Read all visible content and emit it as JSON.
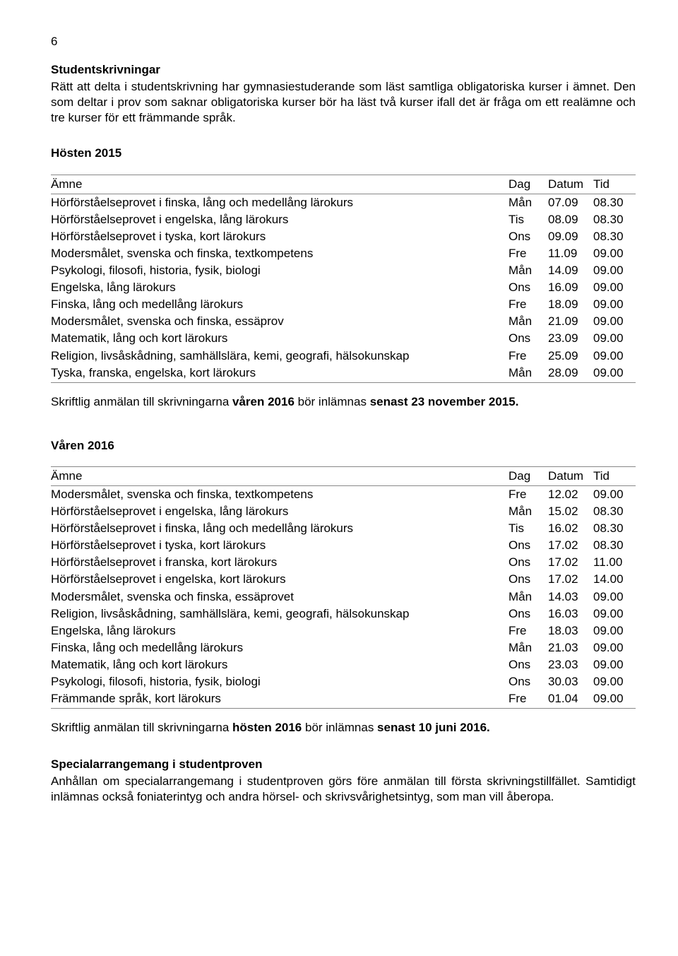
{
  "page_number": "6",
  "section1": {
    "heading": "Studentskrivningar",
    "body": "Rätt att delta i studentskrivning har gymnasiestuderande som läst samtliga obligatoriska kurser i ämnet. Den som deltar i prov som saknar obligatoriska kurser bör ha läst två kurser ifall det är fråga om ett realämne och tre kurser för ett främmande språk."
  },
  "hosten": {
    "heading": "Hösten 2015",
    "columns": {
      "subject": "Ämne",
      "day": "Dag",
      "date": "Datum",
      "time": "Tid"
    },
    "rows": [
      {
        "subject": "Hörförståelseprovet i finska, lång och medellång lärokurs",
        "day": "Mån",
        "date": "07.09",
        "time": "08.30"
      },
      {
        "subject": "Hörförståelseprovet i engelska, lång lärokurs",
        "day": "Tis",
        "date": "08.09",
        "time": "08.30"
      },
      {
        "subject": "Hörförståelseprovet i tyska, kort lärokurs",
        "day": "Ons",
        "date": "09.09",
        "time": "08.30"
      },
      {
        "subject": "Modersmålet, svenska och finska, textkompetens",
        "day": "Fre",
        "date": "11.09",
        "time": "09.00"
      },
      {
        "subject": "Psykologi, filosofi, historia, fysik, biologi",
        "day": "Mån",
        "date": "14.09",
        "time": "09.00"
      },
      {
        "subject": "Engelska, lång lärokurs",
        "day": "Ons",
        "date": "16.09",
        "time": "09.00"
      },
      {
        "subject": "Finska, lång och medellång lärokurs",
        "day": "Fre",
        "date": "18.09",
        "time": "09.00"
      },
      {
        "subject": "Modersmålet, svenska och finska, essäprov",
        "day": "Mån",
        "date": "21.09",
        "time": "09.00"
      },
      {
        "subject": "Matematik, lång och kort lärokurs",
        "day": "Ons",
        "date": "23.09",
        "time": "09.00"
      },
      {
        "subject": "Religion, livsåskådning, samhällslära, kemi, geografi, hälsokunskap",
        "day": "Fre",
        "date": "25.09",
        "time": "09.00"
      },
      {
        "subject": "Tyska, franska, engelska, kort lärokurs",
        "day": "Mån",
        "date": "28.09",
        "time": "09.00"
      }
    ],
    "note_pre": "Skriftlig anmälan till skrivningarna ",
    "note_b1": "våren 2016",
    "note_mid": " bör inlämnas ",
    "note_b2": "senast 23 november 2015."
  },
  "varen": {
    "heading": "Våren 2016",
    "columns": {
      "subject": "Ämne",
      "day": "Dag",
      "date": "Datum",
      "time": "Tid"
    },
    "rows": [
      {
        "subject": "Modersmålet, svenska och finska, textkompetens",
        "day": "Fre",
        "date": "12.02",
        "time": "09.00"
      },
      {
        "subject": "Hörförståelseprovet i engelska, lång lärokurs",
        "day": "Mån",
        "date": "15.02",
        "time": "08.30"
      },
      {
        "subject": "Hörförståelseprovet i finska, lång och medellång lärokurs",
        "day": "Tis",
        "date": "16.02",
        "time": "08.30"
      },
      {
        "subject": "Hörförståelseprovet i tyska, kort lärokurs",
        "day": "Ons",
        "date": "17.02",
        "time": "08.30"
      },
      {
        "subject": "Hörförståelseprovet i franska, kort lärokurs",
        "day": "Ons",
        "date": "17.02",
        "time": "11.00"
      },
      {
        "subject": "Hörförståelseprovet i engelska, kort lärokurs",
        "day": "Ons",
        "date": "17.02",
        "time": "14.00"
      },
      {
        "subject": "Modersmålet, svenska och finska, essäprovet",
        "day": "Mån",
        "date": "14.03",
        "time": "09.00"
      },
      {
        "subject": "Religion, livsåskådning, samhällslära, kemi, geografi, hälsokunskap",
        "day": "Ons",
        "date": "16.03",
        "time": "09.00"
      },
      {
        "subject": "Engelska, lång lärokurs",
        "day": "Fre",
        "date": "18.03",
        "time": "09.00"
      },
      {
        "subject": "Finska, lång och medellång lärokurs",
        "day": "Mån",
        "date": "21.03",
        "time": "09.00"
      },
      {
        "subject": "Matematik, lång och kort lärokurs",
        "day": "Ons",
        "date": "23.03",
        "time": "09.00"
      },
      {
        "subject": "Psykologi, filosofi, historia, fysik, biologi",
        "day": "Ons",
        "date": "30.03",
        "time": "09.00"
      },
      {
        "subject": "Främmande språk, kort lärokurs",
        "day": "Fre",
        "date": "01.04",
        "time": "09.00"
      }
    ],
    "note_pre": "Skriftlig anmälan till skrivningarna ",
    "note_b1": "hösten 2016",
    "note_mid": " bör inlämnas ",
    "note_b2": "senast 10 juni 2016."
  },
  "special": {
    "heading": "Specialarrangemang i studentproven",
    "body": "Anhållan om specialarrangemang i studentproven görs före anmälan till första skrivningstillfället. Samtidigt inlämnas också foniaterintyg och andra hörsel- och skrivsvårighetsintyg, som man vill åberopa."
  }
}
